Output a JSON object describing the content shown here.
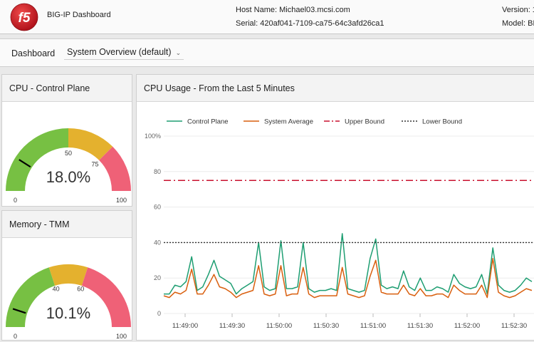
{
  "header": {
    "app_title": "BIG-IP Dashboard",
    "host_label": "Host Name: Michael03.mcsi.com",
    "serial_label": "Serial: 420af041-7109-ca75-64c3afd26ca1",
    "version_label": "Version: 1",
    "model_label": "Model: BI"
  },
  "dashboard_bar": {
    "label": "Dashboard",
    "selected_view": "System Overview (default)"
  },
  "cpu_gauge": {
    "title": "CPU - Control Plane",
    "value": 18.0,
    "value_text": "18.0%",
    "min_label": "0",
    "max_label": "100",
    "tick_labels": [
      "50",
      "75"
    ],
    "zones": [
      {
        "from": 0,
        "to": 50,
        "color": "#77c043"
      },
      {
        "from": 50,
        "to": 75,
        "color": "#e4b12e"
      },
      {
        "from": 75,
        "to": 100,
        "color": "#ef6177"
      }
    ]
  },
  "memory_gauge": {
    "title": "Memory - TMM",
    "value": 10.1,
    "value_text": "10.1%",
    "min_label": "0",
    "max_label": "100",
    "tick_labels": [
      "40",
      "60"
    ],
    "zones": [
      {
        "from": 0,
        "to": 40,
        "color": "#77c043"
      },
      {
        "from": 40,
        "to": 60,
        "color": "#e4b12e"
      },
      {
        "from": 60,
        "to": 100,
        "color": "#ef6177"
      }
    ]
  },
  "chart_data": {
    "type": "line",
    "title": "CPU Usage - From the Last 5 Minutes",
    "x_tick_labels": [
      "11:49:00",
      "11:49:30",
      "11:50:00",
      "11:50:30",
      "11:51:00",
      "11:51:30",
      "11:52:00",
      "11:52:30"
    ],
    "y_tick_labels": [
      "0",
      "20",
      "40",
      "60",
      "80",
      "100%"
    ],
    "ylim": [
      0,
      100
    ],
    "grid": true,
    "legend_position": "top",
    "series": [
      {
        "name": "Control Plane",
        "color": "#1e9e72",
        "values": [
          11,
          11,
          16,
          15,
          18,
          32,
          13,
          15,
          22,
          30,
          21,
          19,
          17,
          11,
          14,
          16,
          18,
          40,
          15,
          13,
          14,
          41,
          14,
          14,
          15,
          40,
          14,
          12,
          13,
          13,
          14,
          13,
          45,
          14,
          13,
          12,
          13,
          31,
          42,
          16,
          14,
          15,
          14,
          24,
          15,
          13,
          20,
          13,
          13,
          15,
          14,
          12,
          22,
          17,
          15,
          14,
          15,
          22,
          11,
          37,
          16,
          13,
          12,
          13,
          16,
          20,
          18
        ]
      },
      {
        "name": "System Average",
        "color": "#d95f0e",
        "values": [
          10,
          9,
          12,
          11,
          13,
          25,
          11,
          11,
          16,
          22,
          15,
          14,
          12,
          9,
          11,
          12,
          13,
          27,
          11,
          10,
          11,
          27,
          10,
          11,
          11,
          26,
          11,
          9,
          10,
          10,
          10,
          10,
          26,
          11,
          10,
          9,
          10,
          21,
          30,
          12,
          11,
          11,
          11,
          16,
          11,
          10,
          14,
          10,
          10,
          11,
          11,
          9,
          16,
          13,
          11,
          11,
          11,
          16,
          9,
          31,
          12,
          10,
          9,
          10,
          12,
          14,
          13
        ]
      },
      {
        "name": "Upper Bound",
        "color": "#c8102e",
        "constant": 75
      },
      {
        "name": "Lower Bound",
        "color": "#333333",
        "constant": 40
      }
    ]
  }
}
